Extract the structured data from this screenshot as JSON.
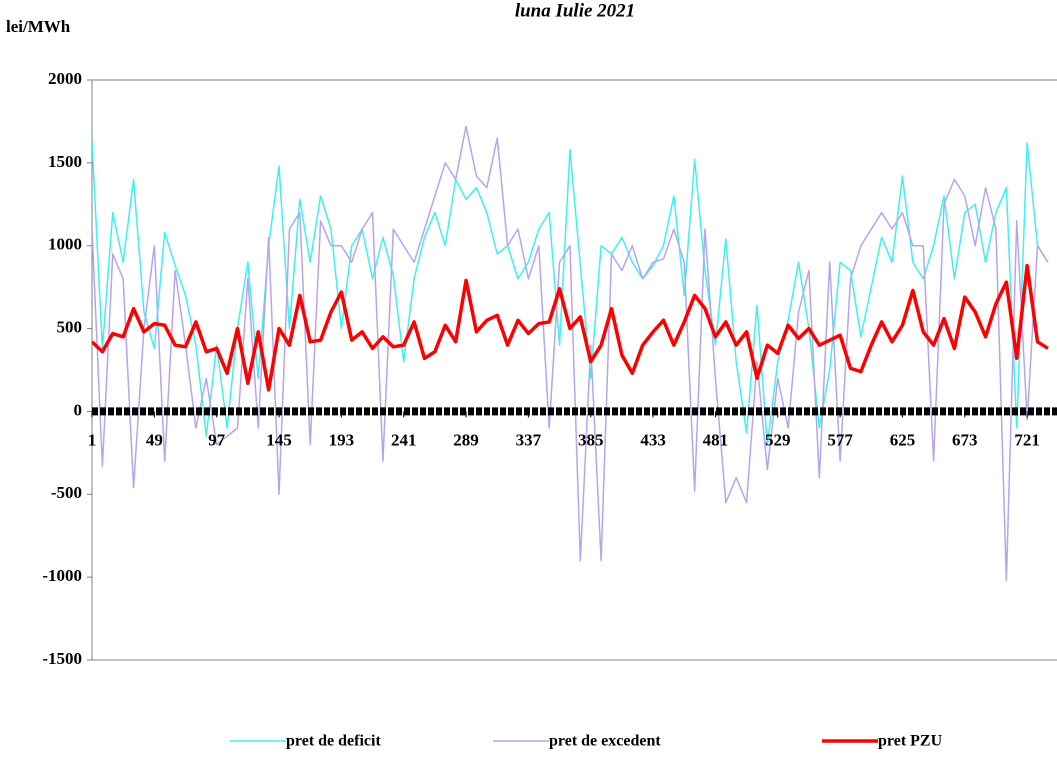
{
  "chart_data": {
    "type": "line",
    "title": "luna Iulie 2021",
    "y_label": "lei/MWh",
    "x": [
      1,
      9,
      17,
      25,
      33,
      41,
      49,
      57,
      65,
      73,
      81,
      89,
      97,
      105,
      113,
      121,
      129,
      137,
      145,
      153,
      161,
      169,
      177,
      185,
      193,
      201,
      209,
      217,
      225,
      233,
      241,
      249,
      257,
      265,
      273,
      281,
      289,
      297,
      305,
      313,
      321,
      329,
      337,
      345,
      353,
      361,
      369,
      377,
      385,
      393,
      401,
      409,
      417,
      425,
      433,
      441,
      449,
      457,
      465,
      473,
      481,
      489,
      497,
      505,
      513,
      521,
      529,
      537,
      545,
      553,
      561,
      569,
      577,
      585,
      593,
      601,
      609,
      617,
      625,
      633,
      641,
      649,
      657,
      665,
      673,
      681,
      689,
      697,
      705,
      713,
      721,
      729,
      737
    ],
    "series": [
      {
        "name": "pret de deficit",
        "color": "#3ff0f0",
        "width": 1.5,
        "values": [
          1630,
          380,
          1200,
          900,
          1400,
          600,
          380,
          1080,
          880,
          700,
          400,
          -150,
          400,
          -100,
          500,
          900,
          200,
          1000,
          1480,
          500,
          1280,
          900,
          1300,
          1100,
          500,
          1000,
          1100,
          800,
          1050,
          820,
          300,
          800,
          1050,
          1200,
          1000,
          1400,
          1280,
          1350,
          1200,
          950,
          1000,
          800,
          900,
          1100,
          1200,
          400,
          1580,
          880,
          200,
          1000,
          950,
          1050,
          900,
          800,
          880,
          1000,
          1300,
          700,
          1520,
          850,
          400,
          1040,
          300,
          -130,
          640,
          -200,
          300,
          550,
          900,
          500,
          -100,
          250,
          900,
          850,
          450,
          750,
          1050,
          900,
          1420,
          900,
          800,
          1000,
          1300,
          800,
          1200,
          1250,
          900,
          1200,
          1350,
          -100,
          1620,
          1000,
          900
        ]
      },
      {
        "name": "pret de excedent",
        "color": "#b8a4ec",
        "width": 1.5,
        "values": [
          1100,
          -330,
          950,
          800,
          -460,
          500,
          1000,
          -300,
          850,
          400,
          -100,
          200,
          -200,
          -150,
          -100,
          800,
          -100,
          1050,
          -500,
          1100,
          1200,
          -200,
          1150,
          1000,
          1000,
          900,
          1100,
          1200,
          -300,
          1100,
          1000,
          900,
          1100,
          1300,
          1500,
          1400,
          1720,
          1420,
          1350,
          1650,
          1000,
          1100,
          800,
          1000,
          -100,
          900,
          1000,
          -900,
          400,
          -900,
          950,
          850,
          1000,
          800,
          900,
          920,
          1100,
          900,
          -480,
          1100,
          200,
          -550,
          -400,
          -550,
          300,
          -350,
          200,
          -100,
          600,
          850,
          -400,
          900,
          -300,
          800,
          1000,
          1100,
          1200,
          1100,
          1200,
          1000,
          1000,
          -300,
          1250,
          1400,
          1300,
          1000,
          1350,
          1100,
          -1020,
          1150,
          -50,
          1000,
          900
        ]
      },
      {
        "name": "pret PZU",
        "color": "#ff0000",
        "width": 3.5,
        "values": [
          420,
          360,
          470,
          450,
          620,
          480,
          530,
          520,
          400,
          390,
          540,
          360,
          380,
          230,
          500,
          170,
          480,
          130,
          500,
          400,
          700,
          420,
          430,
          600,
          720,
          430,
          480,
          380,
          450,
          390,
          400,
          540,
          320,
          360,
          520,
          420,
          790,
          480,
          550,
          580,
          400,
          550,
          470,
          530,
          540,
          740,
          500,
          570,
          300,
          400,
          620,
          340,
          230,
          400,
          480,
          550,
          400,
          540,
          700,
          620,
          450,
          540,
          400,
          480,
          200,
          400,
          350,
          520,
          440,
          500,
          400,
          430,
          460,
          260,
          240,
          400,
          540,
          420,
          520,
          730,
          480,
          400,
          560,
          380,
          690,
          600,
          450,
          650,
          780,
          320,
          880,
          420,
          380
        ]
      }
    ],
    "xlim": [
      1,
      744
    ],
    "xticks": [
      1,
      49,
      97,
      145,
      193,
      241,
      289,
      337,
      385,
      433,
      481,
      529,
      577,
      625,
      673,
      721
    ],
    "ylim": [
      -1500,
      2000
    ],
    "yticks": [
      -1500,
      -1000,
      -500,
      0,
      500,
      1000,
      1500,
      2000
    ],
    "grid": false,
    "legend": "bottom"
  }
}
